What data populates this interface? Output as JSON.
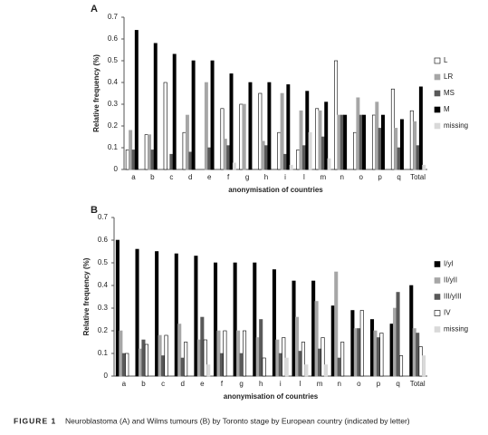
{
  "chart_data": [
    {
      "type": "bar",
      "panel": "A",
      "y_label": "Relative frequency (%)",
      "x_label": "anonymisation of countries",
      "categories": [
        "a",
        "b",
        "c",
        "d",
        "e",
        "f",
        "g",
        "h",
        "i",
        "l",
        "m",
        "n",
        "o",
        "p",
        "q",
        "Total"
      ],
      "ylim": [
        0,
        0.7
      ],
      "yticks": [
        0,
        0.1,
        0.2,
        0.3,
        0.4,
        0.5,
        0.6,
        0.7
      ],
      "legend": "right",
      "series": [
        {
          "name": "L",
          "color": "#ffffff",
          "values": [
            0.09,
            0.16,
            0.4,
            0.17,
            0.0,
            0.28,
            0.3,
            0.35,
            0.17,
            0.09,
            0.28,
            0.5,
            0.17,
            0.25,
            0.37,
            0.27
          ]
        },
        {
          "name": "LR",
          "color": "#a6a6a6",
          "values": [
            0.18,
            0.16,
            0.0,
            0.25,
            0.4,
            0.14,
            0.3,
            0.13,
            0.35,
            0.27,
            0.27,
            0.25,
            0.33,
            0.31,
            0.19,
            0.22
          ]
        },
        {
          "name": "MS",
          "color": "#595959",
          "values": [
            0.09,
            0.09,
            0.07,
            0.08,
            0.1,
            0.11,
            0.0,
            0.11,
            0.07,
            0.11,
            0.15,
            0.25,
            0.25,
            0.19,
            0.1,
            0.11
          ]
        },
        {
          "name": "M",
          "color": "#000000",
          "values": [
            0.64,
            0.58,
            0.53,
            0.5,
            0.5,
            0.44,
            0.4,
            0.4,
            0.39,
            0.36,
            0.31,
            0.25,
            0.25,
            0.25,
            0.23,
            0.38
          ]
        },
        {
          "name": "missing",
          "color": "#d9d9d9",
          "values": [
            0.0,
            0.0,
            0.0,
            0.0,
            0.0,
            0.03,
            0.0,
            0.0,
            0.02,
            0.17,
            0.05,
            0.0,
            0.0,
            0.0,
            0.0,
            0.02
          ]
        }
      ]
    },
    {
      "type": "bar",
      "panel": "B",
      "y_label": "Relative frequency (%)",
      "x_label": "anonymisation of countries",
      "categories": [
        "a",
        "b",
        "c",
        "d",
        "e",
        "f",
        "g",
        "h",
        "i",
        "l",
        "m",
        "n",
        "o",
        "p",
        "q",
        "Total"
      ],
      "ylim": [
        0,
        0.7
      ],
      "yticks": [
        0,
        0.1,
        0.2,
        0.3,
        0.4,
        0.5,
        0.6,
        0.7
      ],
      "legend": "right",
      "series": [
        {
          "name": "I/yI",
          "color": "#000000",
          "values": [
            0.6,
            0.56,
            0.55,
            0.54,
            0.53,
            0.5,
            0.5,
            0.5,
            0.47,
            0.42,
            0.42,
            0.31,
            0.29,
            0.25,
            0.23,
            0.4
          ]
        },
        {
          "name": "II/yII",
          "color": "#a6a6a6",
          "values": [
            0.2,
            0.12,
            0.18,
            0.23,
            0.16,
            0.2,
            0.2,
            0.17,
            0.16,
            0.26,
            0.33,
            0.46,
            0.21,
            0.2,
            0.3,
            0.21
          ]
        },
        {
          "name": "III/yIII",
          "color": "#595959",
          "values": [
            0.1,
            0.16,
            0.09,
            0.08,
            0.26,
            0.1,
            0.1,
            0.25,
            0.1,
            0.11,
            0.12,
            0.08,
            0.21,
            0.17,
            0.37,
            0.19
          ]
        },
        {
          "name": "IV",
          "color": "#ffffff",
          "values": [
            0.1,
            0.14,
            0.18,
            0.15,
            0.16,
            0.2,
            0.2,
            0.08,
            0.17,
            0.15,
            0.17,
            0.15,
            0.29,
            0.19,
            0.09,
            0.13
          ]
        },
        {
          "name": "missing",
          "color": "#d9d9d9",
          "values": [
            0.0,
            0.0,
            0.0,
            0.0,
            0.05,
            0.0,
            0.0,
            0.0,
            0.08,
            0.05,
            0.05,
            0.0,
            0.0,
            0.0,
            0.0,
            0.09
          ]
        }
      ]
    }
  ],
  "caption": {
    "label": "FIGURE 1",
    "text": "Neuroblastoma (A) and Wilms tumours (B) by Toronto stage by European country (indicated by letter)"
  }
}
